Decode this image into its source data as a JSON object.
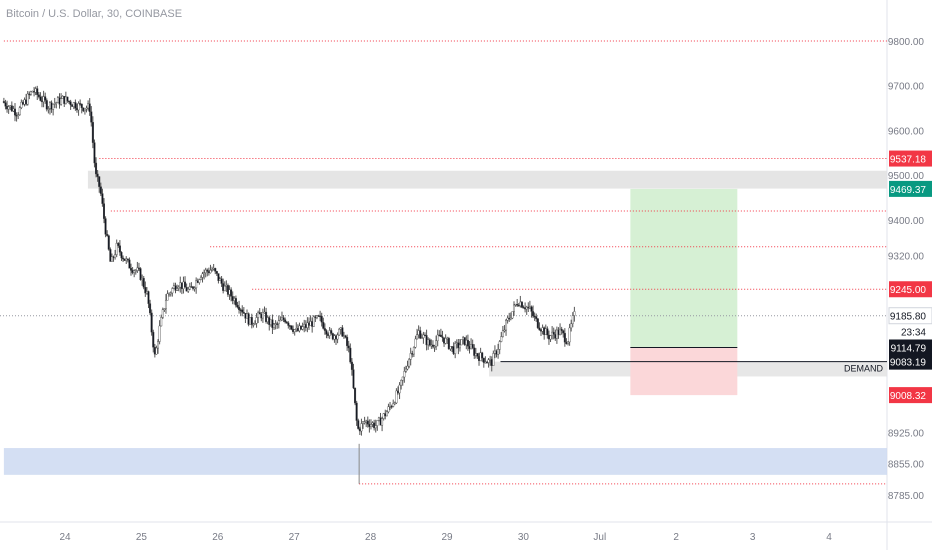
{
  "header": {
    "title": "Bitcoin / U.S. Dollar, 30, COINBASE"
  },
  "chart_data": {
    "type": "candlestick",
    "symbol": "Bitcoin / U.S. Dollar",
    "interval": "30",
    "exchange": "COINBASE",
    "ylim": [
      8740,
      9860
    ],
    "y_ticks": [
      9800,
      9700,
      9600,
      9500,
      9400,
      9320,
      9245,
      9185.8,
      8925,
      8855,
      8785
    ],
    "y_tick_labels": [
      "9800.00",
      "9700.00",
      "9600.00",
      "9500.00",
      "9400.00",
      "9320.00",
      "9245.00",
      "9185.80",
      "8925.00",
      "8855.00",
      "8785.00"
    ],
    "x_ticks": [
      {
        "t": 24,
        "label": "24"
      },
      {
        "t": 25,
        "label": "25"
      },
      {
        "t": 26,
        "label": "26"
      },
      {
        "t": 27,
        "label": "27"
      },
      {
        "t": 28,
        "label": "28"
      },
      {
        "t": 29,
        "label": "29"
      },
      {
        "t": 30,
        "label": "30"
      },
      {
        "t": 31,
        "label": "Jul"
      },
      {
        "t": 32,
        "label": "2"
      },
      {
        "t": 33,
        "label": "3"
      },
      {
        "t": 34,
        "label": "4"
      }
    ],
    "price_path": [
      [
        23.2,
        9665
      ],
      [
        23.4,
        9640
      ],
      [
        23.6,
        9690
      ],
      [
        23.8,
        9655
      ],
      [
        24.0,
        9670
      ],
      [
        24.2,
        9655
      ],
      [
        24.35,
        9650
      ],
      [
        24.42,
        9500
      ],
      [
        24.48,
        9470
      ],
      [
        24.55,
        9380
      ],
      [
        24.62,
        9300
      ],
      [
        24.7,
        9340
      ],
      [
        24.85,
        9300
      ],
      [
        25.0,
        9280
      ],
      [
        25.1,
        9230
      ],
      [
        25.2,
        9090
      ],
      [
        25.25,
        9150
      ],
      [
        25.35,
        9230
      ],
      [
        25.5,
        9260
      ],
      [
        25.65,
        9240
      ],
      [
        25.8,
        9280
      ],
      [
        25.95,
        9290
      ],
      [
        26.1,
        9250
      ],
      [
        26.3,
        9210
      ],
      [
        26.45,
        9170
      ],
      [
        26.6,
        9190
      ],
      [
        26.75,
        9160
      ],
      [
        26.9,
        9180
      ],
      [
        27.05,
        9150
      ],
      [
        27.2,
        9165
      ],
      [
        27.35,
        9180
      ],
      [
        27.5,
        9140
      ],
      [
        27.65,
        9150
      ],
      [
        27.75,
        9100
      ],
      [
        27.85,
        8930
      ],
      [
        27.95,
        8950
      ],
      [
        28.1,
        8940
      ],
      [
        28.25,
        8975
      ],
      [
        28.4,
        9020
      ],
      [
        28.5,
        9080
      ],
      [
        28.65,
        9150
      ],
      [
        28.8,
        9120
      ],
      [
        28.95,
        9140
      ],
      [
        29.1,
        9110
      ],
      [
        29.25,
        9130
      ],
      [
        29.4,
        9100
      ],
      [
        29.5,
        9090
      ],
      [
        29.6,
        9080
      ],
      [
        29.7,
        9120
      ],
      [
        29.8,
        9170
      ],
      [
        29.95,
        9220
      ],
      [
        30.1,
        9200
      ],
      [
        30.2,
        9170
      ],
      [
        30.35,
        9140
      ],
      [
        30.5,
        9150
      ],
      [
        30.6,
        9130
      ],
      [
        30.68,
        9185.8
      ]
    ],
    "last_price": 9185.8,
    "countdown": "23:34",
    "resistance_lines": [
      {
        "price": 9800,
        "t_start": 23.2
      },
      {
        "price": 9537.18,
        "t_start": 24.45
      },
      {
        "price": 9420,
        "t_start": 24.6
      },
      {
        "price": 9340,
        "t_start": 25.9
      },
      {
        "price": 9245,
        "t_start": 26.45
      },
      {
        "price": 8810,
        "t_start": 27.85
      }
    ],
    "zones": [
      {
        "color": "#e0e0e0",
        "price_top": 9510,
        "price_bottom": 9470,
        "t_start": 24.3
      },
      {
        "color": "#cdd9f1",
        "price_top": 8890,
        "price_bottom": 8830,
        "t_start": 23.2
      },
      {
        "color": "#e3e3e3",
        "price_top": 9083.19,
        "price_bottom": 9050,
        "t_start": 29.55,
        "label": "DEMAND"
      }
    ],
    "demand_line": {
      "price": 9083.19,
      "t_start": 29.7
    },
    "long_position": {
      "t_start": 31.4,
      "t_end": 32.8,
      "entry": 9114.79,
      "target": 9469.37,
      "stop": 9008.32,
      "profit_color": "#d6f0d4",
      "loss_color": "#fbd7d9"
    },
    "price_labels": [
      {
        "price": 9537.18,
        "text": "9537.18",
        "bg": "#f23645",
        "fg": "#ffffff"
      },
      {
        "price": 9469.37,
        "text": "9469.37",
        "bg": "#089981",
        "fg": "#ffffff"
      },
      {
        "price": 9245.0,
        "text": "9245.00",
        "bg": "#f23645",
        "fg": "#ffffff"
      },
      {
        "price": 9185.8,
        "text": "9185.80",
        "bg": "#ffffff",
        "fg": "#131722",
        "border": "#d1d4dc"
      },
      {
        "price": 9114.79,
        "text": "9114.79",
        "bg": "#131722",
        "fg": "#ffffff"
      },
      {
        "price": 9083.19,
        "text": "9083.19",
        "bg": "#131722",
        "fg": "#ffffff"
      },
      {
        "price": 9008.32,
        "text": "9008.32",
        "bg": "#f23645",
        "fg": "#ffffff"
      }
    ],
    "colors": {
      "up": "#ffffff",
      "down": "#131722",
      "wick": "#555555",
      "dotted_red": "#f23645",
      "axis_text": "#787b86"
    }
  }
}
